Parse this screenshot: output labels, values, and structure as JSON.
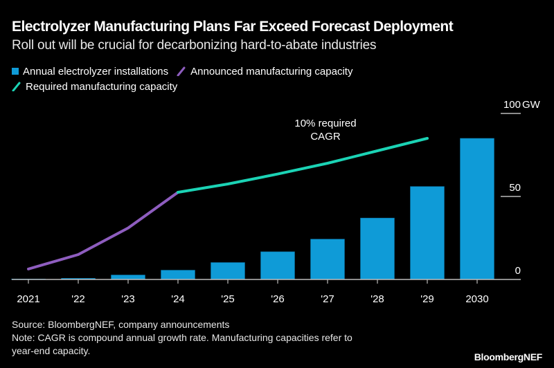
{
  "header": {
    "title": "Electrolyzer Manufacturing Plans Far Exceed Forecast Deployment",
    "subtitle": "Roll out will be crucial for decarbonizing hard-to-abate industries"
  },
  "legend": [
    {
      "label": "Annual electrolyzer installations",
      "shape": "square",
      "color": "#0F9BD7"
    },
    {
      "label": "Announced manufacturing capacity",
      "shape": "line",
      "color": "#8E5DBF"
    },
    {
      "label": "Required manufacturing capacity",
      "shape": "line",
      "color": "#1BD3B5"
    }
  ],
  "annotation": {
    "line1": "10% required",
    "line2": "CAGR"
  },
  "footer": {
    "source": "Source: BloombergNEF, company announcements",
    "note_line1": "Note: CAGR is compound annual growth rate. Manufacturing capacities refer to",
    "note_line2": "year-end capacity."
  },
  "brand": "BloombergNEF",
  "chart_data": {
    "type": "bar",
    "title": "Electrolyzer Manufacturing Plans Far Exceed Forecast Deployment",
    "subtitle": "Roll out will be crucial for decarbonizing hard-to-abate industries",
    "xlabel": "",
    "ylabel": "GW",
    "y_unit_label": "GW",
    "ylim": [
      0,
      100
    ],
    "yticks": [
      0,
      50,
      100
    ],
    "ytick_labels": [
      "0",
      "50",
      "100"
    ],
    "y_axis_position": "right",
    "grid": false,
    "legend_position": "top-left",
    "categories": [
      "2021",
      "'22",
      "'23",
      "'24",
      "'25",
      "'26",
      "'27",
      "'28",
      "'29",
      "2030"
    ],
    "series": [
      {
        "name": "Annual electrolyzer installations",
        "type": "bar",
        "color": "#0F9BD7",
        "values": [
          0.3,
          0.7,
          2.7,
          5.6,
          10.2,
          16.7,
          24.3,
          37,
          56,
          85
        ]
      },
      {
        "name": "Announced manufacturing capacity",
        "type": "line",
        "color": "#8E5DBF",
        "values": [
          6.3,
          15,
          31,
          52.5,
          null,
          null,
          null,
          null,
          null,
          null
        ]
      },
      {
        "name": "Required manufacturing capacity",
        "type": "line",
        "color": "#1BD3B5",
        "values": [
          null,
          null,
          null,
          52.5,
          57.5,
          63.5,
          70,
          77.5,
          85,
          null
        ]
      }
    ],
    "annotations": [
      {
        "text": "10% required CAGR",
        "near": "'27"
      }
    ]
  }
}
